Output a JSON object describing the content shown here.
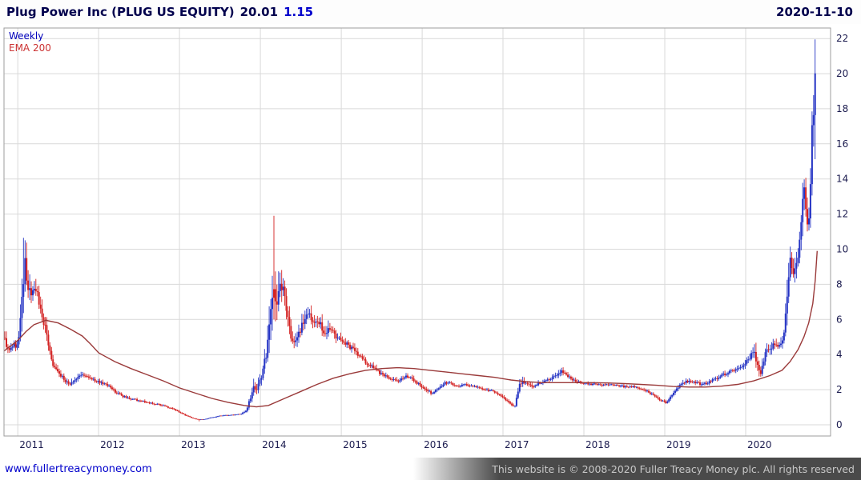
{
  "header": {
    "instrument": "Plug Power Inc (PLUG US EQUITY)",
    "price": "20.01",
    "change": "1.15",
    "date": "2020-11-10"
  },
  "legend": {
    "weekly": "Weekly",
    "ema": "EMA 200"
  },
  "footer": {
    "link": "www.fullertreacymoney.com",
    "copyright": "This website is © 2008-2020 Fuller Treacy Money plc. All rights reserved"
  },
  "colors": {
    "title": "#00004d",
    "change": "#0000cc",
    "axis_text": "#1b1b4f",
    "grid": "#d9d9d9",
    "plot_border": "#9e9e9e",
    "up": "#2433c4",
    "down": "#d32222",
    "ema": "#9a3a3a",
    "link": "#0000cc",
    "footer_bg": "#4a4a4a",
    "footer_text": "#c8c8c8"
  },
  "chart_data": {
    "type": "candlestick",
    "title": "Plug Power Inc (PLUG US EQUITY) weekly candles with 200-period EMA",
    "last_close": 20.01,
    "x_axis": {
      "range": [
        2010.83,
        2021.05
      ],
      "tick_values": [
        2011,
        2012,
        2013,
        2014,
        2015,
        2016,
        2017,
        2018,
        2019,
        2020
      ],
      "ticks": [
        "2011",
        "2012",
        "2013",
        "2014",
        "2015",
        "2016",
        "2017",
        "2018",
        "2019",
        "2020"
      ]
    },
    "y_axis": {
      "range": [
        -0.64,
        22.6
      ],
      "ticks": [
        0,
        2,
        4,
        6,
        8,
        10,
        12,
        14,
        16,
        18,
        20,
        22
      ],
      "side": "right"
    },
    "grid": true,
    "data_range": [
      2010.84,
      2020.87
    ],
    "anchor_highs": [
      [
        2011.08,
        10.65,
        ""
      ],
      [
        2014.166,
        11.9,
        "down"
      ],
      [
        2020.87,
        21.95,
        "up"
      ]
    ],
    "anchor_lows": [
      [
        2013.25,
        0.2
      ],
      [
        2014.166,
        6.0
      ],
      [
        2017.147,
        0.98
      ]
    ],
    "series": [
      {
        "name": "Weekly",
        "type": "ohlc",
        "color_up": "#2433c4",
        "color_down": "#d32222",
        "keypoints": [
          [
            2010.83,
            4.9,
            0.1
          ],
          [
            2010.88,
            4.3,
            0.1
          ],
          [
            2010.94,
            4.6,
            0.08
          ],
          [
            2011.0,
            4.45,
            0.08
          ],
          [
            2011.04,
            6.3,
            0.22
          ],
          [
            2011.08,
            9.2,
            0.2
          ],
          [
            2011.12,
            8.1,
            0.14
          ],
          [
            2011.17,
            7.3,
            0.12
          ],
          [
            2011.22,
            7.7,
            0.1
          ],
          [
            2011.27,
            6.9,
            0.1
          ],
          [
            2011.33,
            5.7,
            0.12
          ],
          [
            2011.38,
            4.5,
            0.12
          ],
          [
            2011.44,
            3.3,
            0.12
          ],
          [
            2011.5,
            2.95,
            0.1
          ],
          [
            2011.58,
            2.55,
            0.1
          ],
          [
            2011.65,
            2.25,
            0.12
          ],
          [
            2011.72,
            2.6,
            0.1
          ],
          [
            2011.8,
            2.9,
            0.1
          ],
          [
            2011.88,
            2.65,
            0.08
          ],
          [
            2011.96,
            2.5,
            0.08
          ],
          [
            2012.04,
            2.4,
            0.08
          ],
          [
            2012.12,
            2.2,
            0.08
          ],
          [
            2012.2,
            1.9,
            0.1
          ],
          [
            2012.3,
            1.62,
            0.08
          ],
          [
            2012.4,
            1.48,
            0.08
          ],
          [
            2012.5,
            1.38,
            0.08
          ],
          [
            2012.6,
            1.28,
            0.08
          ],
          [
            2012.7,
            1.18,
            0.08
          ],
          [
            2012.8,
            1.08,
            0.08
          ],
          [
            2012.9,
            0.92,
            0.08
          ],
          [
            2013.0,
            0.72,
            0.1
          ],
          [
            2013.08,
            0.52,
            0.1
          ],
          [
            2013.17,
            0.36,
            0.1
          ],
          [
            2013.25,
            0.28,
            0.1
          ],
          [
            2013.33,
            0.33,
            0.1
          ],
          [
            2013.42,
            0.43,
            0.1
          ],
          [
            2013.5,
            0.5,
            0.08
          ],
          [
            2013.58,
            0.53,
            0.08
          ],
          [
            2013.67,
            0.56,
            0.08
          ],
          [
            2013.75,
            0.6,
            0.08
          ],
          [
            2013.83,
            0.78,
            0.16
          ],
          [
            2013.88,
            1.6,
            0.28
          ],
          [
            2013.92,
            2.3,
            0.24
          ],
          [
            2013.96,
            1.95,
            0.2
          ],
          [
            2014.0,
            2.6,
            0.2
          ],
          [
            2014.04,
            3.2,
            0.2
          ],
          [
            2014.08,
            4.4,
            0.22
          ],
          [
            2014.12,
            6.9,
            0.25
          ],
          [
            2014.16,
            8.4,
            0.38
          ],
          [
            2014.19,
            6.3,
            0.24
          ],
          [
            2014.23,
            7.8,
            0.18
          ],
          [
            2014.27,
            8.0,
            0.15
          ],
          [
            2014.31,
            6.8,
            0.15
          ],
          [
            2014.35,
            5.6,
            0.15
          ],
          [
            2014.4,
            4.6,
            0.13
          ],
          [
            2014.44,
            5.0,
            0.12
          ],
          [
            2014.5,
            5.4,
            0.12
          ],
          [
            2014.54,
            6.0,
            0.12
          ],
          [
            2014.58,
            6.4,
            0.12
          ],
          [
            2014.62,
            6.05,
            0.1
          ],
          [
            2014.67,
            5.6,
            0.1
          ],
          [
            2014.71,
            6.0,
            0.1
          ],
          [
            2014.75,
            5.6,
            0.1
          ],
          [
            2014.81,
            5.05,
            0.1
          ],
          [
            2014.85,
            5.6,
            0.1
          ],
          [
            2014.9,
            5.2,
            0.1
          ],
          [
            2014.96,
            4.9,
            0.08
          ],
          [
            2015.04,
            4.7,
            0.08
          ],
          [
            2015.12,
            4.4,
            0.08
          ],
          [
            2015.21,
            4.0,
            0.08
          ],
          [
            2015.29,
            3.6,
            0.08
          ],
          [
            2015.38,
            3.3,
            0.08
          ],
          [
            2015.46,
            3.0,
            0.08
          ],
          [
            2015.54,
            2.8,
            0.08
          ],
          [
            2015.62,
            2.6,
            0.08
          ],
          [
            2015.71,
            2.4,
            0.08
          ],
          [
            2015.79,
            2.8,
            0.08
          ],
          [
            2015.88,
            2.6,
            0.08
          ],
          [
            2015.96,
            2.3,
            0.08
          ],
          [
            2016.04,
            2.0,
            0.1
          ],
          [
            2016.12,
            1.8,
            0.1
          ],
          [
            2016.21,
            2.1,
            0.08
          ],
          [
            2016.29,
            2.4,
            0.08
          ],
          [
            2016.38,
            2.3,
            0.06
          ],
          [
            2016.46,
            2.2,
            0.06
          ],
          [
            2016.54,
            2.3,
            0.06
          ],
          [
            2016.62,
            2.2,
            0.06
          ],
          [
            2016.71,
            2.1,
            0.06
          ],
          [
            2016.79,
            2.0,
            0.06
          ],
          [
            2016.88,
            1.9,
            0.06
          ],
          [
            2016.96,
            1.7,
            0.08
          ],
          [
            2017.04,
            1.4,
            0.1
          ],
          [
            2017.1,
            1.15,
            0.1
          ],
          [
            2017.15,
            1.05,
            0.12
          ],
          [
            2017.19,
            2.0,
            0.22
          ],
          [
            2017.23,
            2.5,
            0.14
          ],
          [
            2017.29,
            2.3,
            0.1
          ],
          [
            2017.38,
            2.2,
            0.08
          ],
          [
            2017.46,
            2.4,
            0.08
          ],
          [
            2017.54,
            2.5,
            0.08
          ],
          [
            2017.62,
            2.7,
            0.08
          ],
          [
            2017.69,
            3.0,
            0.1
          ],
          [
            2017.73,
            3.1,
            0.1
          ],
          [
            2017.79,
            2.8,
            0.08
          ],
          [
            2017.88,
            2.5,
            0.08
          ],
          [
            2017.96,
            2.4,
            0.06
          ],
          [
            2018.04,
            2.35,
            0.06
          ],
          [
            2018.12,
            2.3,
            0.06
          ],
          [
            2018.21,
            2.25,
            0.06
          ],
          [
            2018.29,
            2.3,
            0.06
          ],
          [
            2018.38,
            2.25,
            0.06
          ],
          [
            2018.46,
            2.2,
            0.06
          ],
          [
            2018.54,
            2.15,
            0.06
          ],
          [
            2018.62,
            2.2,
            0.06
          ],
          [
            2018.71,
            2.0,
            0.06
          ],
          [
            2018.79,
            1.9,
            0.08
          ],
          [
            2018.88,
            1.6,
            0.08
          ],
          [
            2018.96,
            1.35,
            0.1
          ],
          [
            2019.02,
            1.25,
            0.1
          ],
          [
            2019.08,
            1.7,
            0.12
          ],
          [
            2019.15,
            2.1,
            0.12
          ],
          [
            2019.21,
            2.4,
            0.1
          ],
          [
            2019.29,
            2.5,
            0.08
          ],
          [
            2019.38,
            2.4,
            0.08
          ],
          [
            2019.46,
            2.3,
            0.08
          ],
          [
            2019.54,
            2.4,
            0.08
          ],
          [
            2019.62,
            2.6,
            0.08
          ],
          [
            2019.71,
            2.8,
            0.08
          ],
          [
            2019.79,
            3.0,
            0.08
          ],
          [
            2019.88,
            3.1,
            0.08
          ],
          [
            2019.96,
            3.3,
            0.08
          ],
          [
            2020.04,
            3.8,
            0.1
          ],
          [
            2020.1,
            4.2,
            0.12
          ],
          [
            2020.15,
            3.4,
            0.2
          ],
          [
            2020.19,
            3.0,
            0.18
          ],
          [
            2020.23,
            3.9,
            0.14
          ],
          [
            2020.29,
            4.3,
            0.12
          ],
          [
            2020.35,
            4.6,
            0.1
          ],
          [
            2020.4,
            4.4,
            0.1
          ],
          [
            2020.44,
            4.8,
            0.1
          ],
          [
            2020.48,
            5.2,
            0.12
          ],
          [
            2020.52,
            8.2,
            0.18
          ],
          [
            2020.54,
            9.0,
            0.12
          ],
          [
            2020.56,
            9.6,
            0.12
          ],
          [
            2020.58,
            8.8,
            0.1
          ],
          [
            2020.6,
            8.5,
            0.1
          ],
          [
            2020.62,
            8.9,
            0.1
          ],
          [
            2020.64,
            9.3,
            0.1
          ],
          [
            2020.66,
            10.2,
            0.12
          ],
          [
            2020.68,
            11.0,
            0.12
          ],
          [
            2020.7,
            12.3,
            0.12
          ],
          [
            2020.72,
            13.3,
            0.1
          ],
          [
            2020.74,
            12.5,
            0.1
          ],
          [
            2020.76,
            11.0,
            0.12
          ],
          [
            2020.78,
            11.8,
            0.1
          ],
          [
            2020.8,
            13.5,
            0.12
          ],
          [
            2020.82,
            16.5,
            0.13
          ],
          [
            2020.835,
            18.8,
            0.1
          ],
          [
            2020.85,
            14.9,
            0.16
          ],
          [
            2020.865,
            16.2,
            0.1
          ],
          [
            2020.87,
            20.01,
            0.12
          ]
        ]
      },
      {
        "name": "EMA 200",
        "type": "line",
        "color": "#9a3a3a",
        "points": [
          [
            2010.83,
            4.2
          ],
          [
            2011.0,
            4.8
          ],
          [
            2011.1,
            5.3
          ],
          [
            2011.2,
            5.7
          ],
          [
            2011.35,
            5.95
          ],
          [
            2011.5,
            5.8
          ],
          [
            2011.65,
            5.45
          ],
          [
            2011.8,
            5.05
          ],
          [
            2011.9,
            4.6
          ],
          [
            2012.0,
            4.1
          ],
          [
            2012.2,
            3.6
          ],
          [
            2012.4,
            3.2
          ],
          [
            2012.6,
            2.85
          ],
          [
            2012.8,
            2.5
          ],
          [
            2013.0,
            2.1
          ],
          [
            2013.2,
            1.8
          ],
          [
            2013.4,
            1.5
          ],
          [
            2013.6,
            1.28
          ],
          [
            2013.8,
            1.1
          ],
          [
            2013.95,
            1.02
          ],
          [
            2014.1,
            1.1
          ],
          [
            2014.3,
            1.5
          ],
          [
            2014.5,
            1.9
          ],
          [
            2014.7,
            2.3
          ],
          [
            2014.9,
            2.65
          ],
          [
            2015.1,
            2.9
          ],
          [
            2015.3,
            3.1
          ],
          [
            2015.5,
            3.2
          ],
          [
            2015.7,
            3.25
          ],
          [
            2015.9,
            3.2
          ],
          [
            2016.1,
            3.1
          ],
          [
            2016.3,
            3.0
          ],
          [
            2016.5,
            2.9
          ],
          [
            2016.7,
            2.8
          ],
          [
            2016.9,
            2.7
          ],
          [
            2017.1,
            2.55
          ],
          [
            2017.3,
            2.45
          ],
          [
            2017.5,
            2.4
          ],
          [
            2017.7,
            2.4
          ],
          [
            2017.9,
            2.4
          ],
          [
            2018.1,
            2.4
          ],
          [
            2018.3,
            2.38
          ],
          [
            2018.5,
            2.35
          ],
          [
            2018.7,
            2.3
          ],
          [
            2018.9,
            2.25
          ],
          [
            2019.1,
            2.18
          ],
          [
            2019.3,
            2.15
          ],
          [
            2019.5,
            2.15
          ],
          [
            2019.7,
            2.2
          ],
          [
            2019.9,
            2.3
          ],
          [
            2020.1,
            2.5
          ],
          [
            2020.3,
            2.8
          ],
          [
            2020.45,
            3.1
          ],
          [
            2020.55,
            3.6
          ],
          [
            2020.65,
            4.3
          ],
          [
            2020.72,
            5.0
          ],
          [
            2020.78,
            5.8
          ],
          [
            2020.83,
            6.9
          ],
          [
            2020.86,
            8.2
          ],
          [
            2020.885,
            9.9
          ]
        ]
      }
    ]
  }
}
